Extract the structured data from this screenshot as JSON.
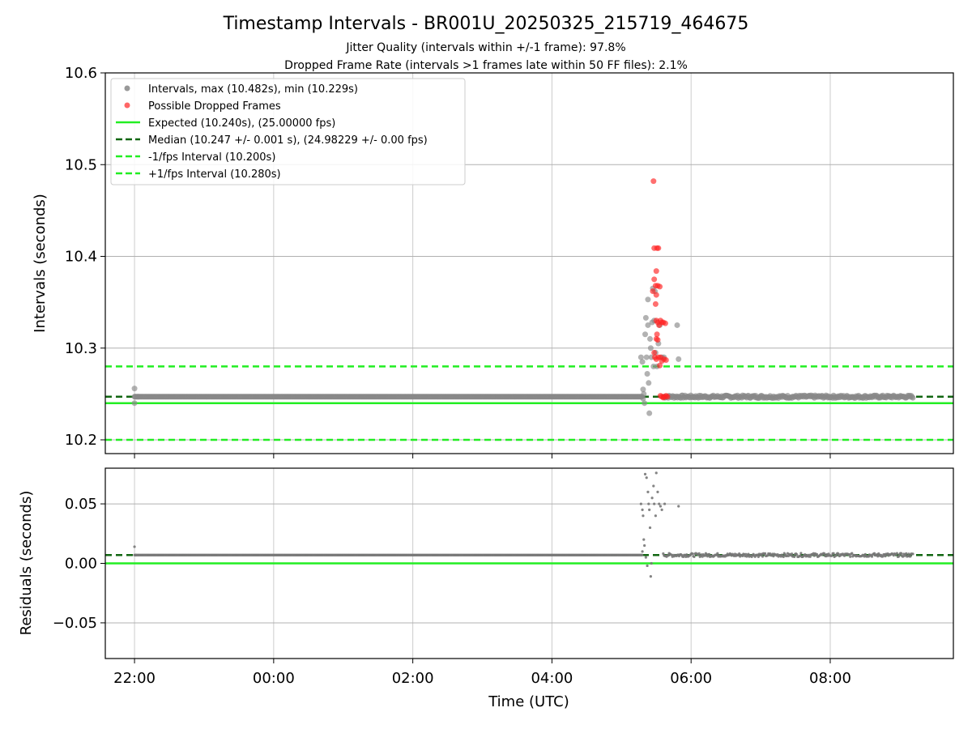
{
  "figure": {
    "title": "Timestamp Intervals - BR001U_20250325_215719_464675",
    "subtitle_line1": "Jitter Quality (intervals within +/-1 frame): 97.8%",
    "subtitle_line2": "Dropped Frame Rate (intervals >1 frames late within 50 FF files): 2.1%"
  },
  "chart_data": [
    {
      "type": "scatter",
      "panel": "top",
      "ylabel": "Intervals (seconds)",
      "ylim": [
        10.185,
        10.6
      ],
      "yticks": [
        10.2,
        10.3,
        10.4,
        10.5,
        10.6
      ],
      "ytick_labels": [
        "10.2",
        "10.3",
        "10.4",
        "10.5",
        "10.6"
      ],
      "xlim_hours": [
        21.58,
        33.77
      ],
      "grid": true,
      "legend_placement": "top-left",
      "legend": [
        {
          "label": "Intervals, max (10.482s), min (10.229s)",
          "kind": "marker",
          "color": "#999999"
        },
        {
          "label": "Possible Dropped Frames",
          "kind": "marker",
          "color": "#ff6666"
        },
        {
          "label": "Expected (10.240s), (25.00000 fps)",
          "kind": "solid",
          "color": "#22ee22"
        },
        {
          "label": "Median (10.247 +/- 0.001 s), (24.98229 +/- 0.00 fps)",
          "kind": "dashed",
          "color": "#116611"
        },
        {
          "label": "-1/fps Interval (10.200s)",
          "kind": "dashed",
          "color": "#22ee22"
        },
        {
          "label": "+1/fps Interval (10.280s)",
          "kind": "dashed",
          "color": "#22ee22"
        }
      ],
      "hlines": [
        {
          "y": 10.24,
          "style": "solid",
          "color": "#22ee22"
        },
        {
          "y": 10.247,
          "style": "dashed",
          "color": "#116611"
        },
        {
          "y": 10.2,
          "style": "dashed",
          "color": "#22ee22"
        },
        {
          "y": 10.28,
          "style": "dashed",
          "color": "#22ee22"
        }
      ],
      "series": [
        {
          "name": "Intervals",
          "color": "#888888",
          "points": [
            [
              22.0,
              10.256
            ],
            [
              22.0,
              10.24
            ],
            [
              22.01,
              10.247
            ],
            [
              22.05,
              10.247
            ],
            [
              29.28,
              10.29
            ],
            [
              29.3,
              10.285
            ],
            [
              29.31,
              10.255
            ],
            [
              29.31,
              10.245
            ],
            [
              29.32,
              10.25
            ],
            [
              29.33,
              10.24
            ],
            [
              29.34,
              10.315
            ],
            [
              29.35,
              10.333
            ],
            [
              29.36,
              10.29
            ],
            [
              29.37,
              10.272
            ],
            [
              29.38,
              10.325
            ],
            [
              29.38,
              10.353
            ],
            [
              29.39,
              10.262
            ],
            [
              29.4,
              10.229
            ],
            [
              29.41,
              10.31
            ],
            [
              29.42,
              10.3
            ],
            [
              29.43,
              10.29
            ],
            [
              29.44,
              10.328
            ],
            [
              29.45,
              10.365
            ],
            [
              29.46,
              10.28
            ],
            [
              29.47,
              10.33
            ],
            [
              29.48,
              10.362
            ],
            [
              29.49,
              10.295
            ],
            [
              29.51,
              10.28
            ],
            [
              29.53,
              10.305
            ],
            [
              29.55,
              10.325
            ],
            [
              29.58,
              10.29
            ],
            [
              29.61,
              10.29
            ],
            [
              29.8,
              10.325
            ],
            [
              29.82,
              10.288
            ]
          ],
          "band": {
            "x_start": 22.0,
            "x_end": 29.3,
            "y": 10.247,
            "note": "continuous grey markers"
          },
          "band2": {
            "x_start": 29.6,
            "x_end": 33.2,
            "y": 10.247,
            "spread": 0.003
          }
        },
        {
          "name": "Possible Dropped Frames",
          "color": "#ff2222",
          "points": [
            [
              29.46,
              10.482
            ],
            [
              29.47,
              10.409
            ],
            [
              29.51,
              10.409
            ],
            [
              29.53,
              10.409
            ],
            [
              29.5,
              10.384
            ],
            [
              29.52,
              10.368
            ],
            [
              29.49,
              10.368
            ],
            [
              29.47,
              10.375
            ],
            [
              29.45,
              10.362
            ],
            [
              29.5,
              10.358
            ],
            [
              29.49,
              10.348
            ],
            [
              29.55,
              10.367
            ],
            [
              29.5,
              10.33
            ],
            [
              29.52,
              10.328
            ],
            [
              29.54,
              10.325
            ],
            [
              29.56,
              10.33
            ],
            [
              29.58,
              10.328
            ],
            [
              29.6,
              10.328
            ],
            [
              29.63,
              10.327
            ],
            [
              29.51,
              10.315
            ],
            [
              29.5,
              10.31
            ],
            [
              29.52,
              10.309
            ],
            [
              29.47,
              10.295
            ],
            [
              29.48,
              10.29
            ],
            [
              29.5,
              10.288
            ],
            [
              29.53,
              10.29
            ],
            [
              29.56,
              10.29
            ],
            [
              29.58,
              10.286
            ],
            [
              29.61,
              10.288
            ],
            [
              29.64,
              10.287
            ],
            [
              29.55,
              10.281
            ],
            [
              29.56,
              10.248
            ],
            [
              29.58,
              10.247
            ],
            [
              29.6,
              10.246
            ],
            [
              29.62,
              10.247
            ],
            [
              29.64,
              10.248
            ],
            [
              29.66,
              10.247
            ]
          ]
        }
      ]
    },
    {
      "type": "scatter",
      "panel": "bottom",
      "ylabel": "Residuals (seconds)",
      "xlabel": "Time (UTC)",
      "ylim": [
        -0.08,
        0.08
      ],
      "yticks": [
        -0.05,
        0.0,
        0.05
      ],
      "ytick_labels": [
        "−0.05",
        "0.00",
        "0.05"
      ],
      "xticks_hours": [
        22,
        24,
        26,
        28,
        30,
        32
      ],
      "xtick_labels": [
        "22:00",
        "00:00",
        "02:00",
        "04:00",
        "06:00",
        "08:00"
      ],
      "grid": true,
      "hlines": [
        {
          "y": 0.0,
          "style": "solid",
          "color": "#22ee22"
        },
        {
          "y": 0.007,
          "style": "dashed",
          "color": "#116611"
        }
      ],
      "series": [
        {
          "name": "Residuals",
          "color": "#777777",
          "points": [
            [
              22.0,
              0.014
            ],
            [
              22.02,
              0.007
            ],
            [
              29.28,
              0.05
            ],
            [
              29.3,
              0.045
            ],
            [
              29.31,
              0.04
            ],
            [
              29.32,
              0.02
            ],
            [
              29.33,
              0.015
            ],
            [
              29.34,
              0.075
            ],
            [
              29.36,
              0.072
            ],
            [
              29.38,
              0.06
            ],
            [
              29.39,
              0.05
            ],
            [
              29.4,
              0.045
            ],
            [
              29.41,
              0.03
            ],
            [
              29.42,
              -0.011
            ],
            [
              29.43,
              0.0
            ],
            [
              29.44,
              0.055
            ],
            [
              29.46,
              0.065
            ],
            [
              29.47,
              0.05
            ],
            [
              29.49,
              0.04
            ],
            [
              29.5,
              0.076
            ],
            [
              29.52,
              0.06
            ],
            [
              29.54,
              0.05
            ],
            [
              29.56,
              0.048
            ],
            [
              29.58,
              0.045
            ],
            [
              29.62,
              0.05
            ],
            [
              29.82,
              0.048
            ],
            [
              29.35,
              0.005
            ],
            [
              29.37,
              -0.002
            ],
            [
              29.3,
              0.01
            ]
          ],
          "band": {
            "x_start": 22.0,
            "x_end": 29.3,
            "y": 0.007
          },
          "band2": {
            "x_start": 29.6,
            "x_end": 33.2,
            "y": 0.007,
            "spread": 0.003
          }
        }
      ]
    }
  ]
}
